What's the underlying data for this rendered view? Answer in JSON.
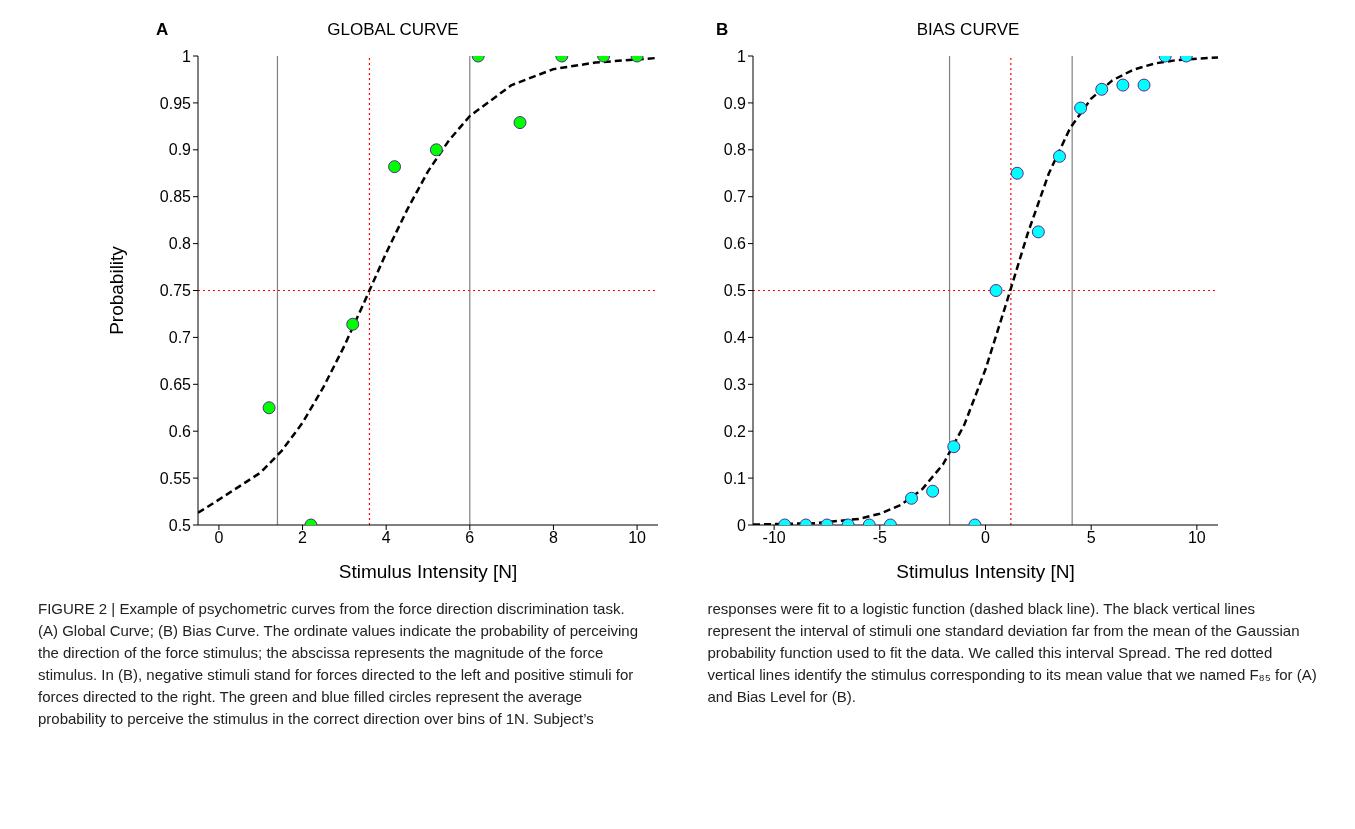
{
  "chart_data": [
    {
      "type": "scatter",
      "title": "GLOBAL CURVE",
      "xlabel": "Stimulus Intensity [N]",
      "ylabel": "Probability",
      "xlim": [
        -0.5,
        10.5
      ],
      "xticks": [
        0,
        2,
        4,
        6,
        8,
        10
      ],
      "ylim": [
        0.5,
        1
      ],
      "yticks": [
        0.5,
        0.55,
        0.6,
        0.65,
        0.7,
        0.75,
        0.8,
        0.85,
        0.9,
        0.95,
        1
      ],
      "series": [
        {
          "color": "#00ff00",
          "marker": "circle",
          "x": [
            1.2,
            2.2,
            3.2,
            4.2,
            5.2,
            6.2,
            7.2,
            8.2,
            9.2,
            10
          ],
          "values": [
            0.625,
            0.5,
            0.714,
            0.882,
            0.9,
            1,
            0.929,
            1,
            1,
            1
          ]
        },
        {
          "type": "line",
          "color": "#000000",
          "marker": "none",
          "line_style": "dashed",
          "x": [
            -0.5,
            0,
            1,
            1.5,
            2,
            2.5,
            3,
            3.5,
            4,
            4.5,
            5,
            5.5,
            6,
            7,
            8,
            9,
            10.5
          ],
          "values": [
            0.513,
            0.527,
            0.556,
            0.579,
            0.609,
            0.647,
            0.691,
            0.74,
            0.79,
            0.836,
            0.877,
            0.91,
            0.936,
            0.969,
            0.986,
            0.993,
            0.998
          ]
        }
      ],
      "ref_lines": [
        {
          "axis": "x",
          "value": 1.4,
          "color": "#808080",
          "line_style": "solid"
        },
        {
          "axis": "x",
          "value": 6.0,
          "color": "#808080",
          "line_style": "solid"
        },
        {
          "axis": "x",
          "value": 3.6,
          "color": "#ff0000",
          "line_style": "dotted"
        },
        {
          "axis": "y",
          "value": 0.75,
          "color": "#ff0000",
          "line_style": "dotted"
        }
      ],
      "annotations": [
        "A",
        "FIGURE 2 | Example of psychometric curves from the force direction discrimination task. (A) Global Curve; (B) Bias Curve. The ordinate values indicate the probability of perceiving the direction of the force stimulus; the abscissa represents the magnitude of the force stimulus. In (B), negative stimuli stand for forces directed to the left and positive stimuli for forces directed to the right. The green and blue filled circles represent the average probability to perceive the stimulus in the correct direction over bins of 1N. Subject’s responses were fit to a logistic function (dashed black line). The black vertical lines represent the interval of stimuli one standard deviation far from the mean of the Gaussian probability function used to fit the data. We called this interval Spread. The red dotted vertical lines identify the stimulus corresponding to its mean value that we named F₈₅ for (A) and Bias Level for (B)."
      ]
    },
    {
      "type": "scatter",
      "title": "BIAS CURVE",
      "xlabel": "Stimulus Intensity [N]",
      "xlim": [
        -11,
        11
      ],
      "xticks": [
        -10,
        -5,
        0,
        5,
        10
      ],
      "ylim": [
        0,
        1
      ],
      "yticks": [
        0,
        0.1,
        0.2,
        0.3,
        0.4,
        0.5,
        0.6,
        0.7,
        0.8,
        0.9,
        1
      ],
      "series": [
        {
          "color": "#00ffff",
          "marker": "circle",
          "x": [
            -9.5,
            -8.5,
            -7.5,
            -6.5,
            -5.5,
            -4.5,
            -3.5,
            -2.5,
            -1.5,
            -0.5,
            0.5,
            1.5,
            2.5,
            3.5,
            4.5,
            5.5,
            6.5,
            7.5,
            8.5,
            9.5
          ],
          "values": [
            0,
            0,
            0,
            0,
            0,
            0,
            0.057,
            0.072,
            0.167,
            0,
            0.5,
            0.75,
            0.625,
            0.786,
            0.889,
            0.929,
            0.938,
            0.938,
            1,
            1
          ]
        },
        {
          "type": "line",
          "color": "#000000",
          "marker": "none",
          "line_style": "dashed",
          "x": [
            -11,
            -8,
            -6,
            -5,
            -4,
            -3,
            -2,
            -1,
            0,
            1,
            2,
            3,
            4,
            5,
            6,
            7,
            8,
            9,
            11
          ],
          "values": [
            0.001,
            0.004,
            0.013,
            0.024,
            0.043,
            0.076,
            0.13,
            0.214,
            0.332,
            0.475,
            0.622,
            0.75,
            0.846,
            0.909,
            0.948,
            0.971,
            0.984,
            0.991,
            0.997
          ]
        }
      ],
      "ref_lines": [
        {
          "axis": "x",
          "value": -1.7,
          "color": "#808080",
          "line_style": "solid"
        },
        {
          "axis": "x",
          "value": 4.1,
          "color": "#808080",
          "line_style": "solid"
        },
        {
          "axis": "x",
          "value": 1.2,
          "color": "#ff0000",
          "line_style": "dotted"
        },
        {
          "axis": "y",
          "value": 0.5,
          "color": "#ff0000",
          "line_style": "dotted"
        }
      ],
      "annotations": [
        "B"
      ]
    }
  ]
}
